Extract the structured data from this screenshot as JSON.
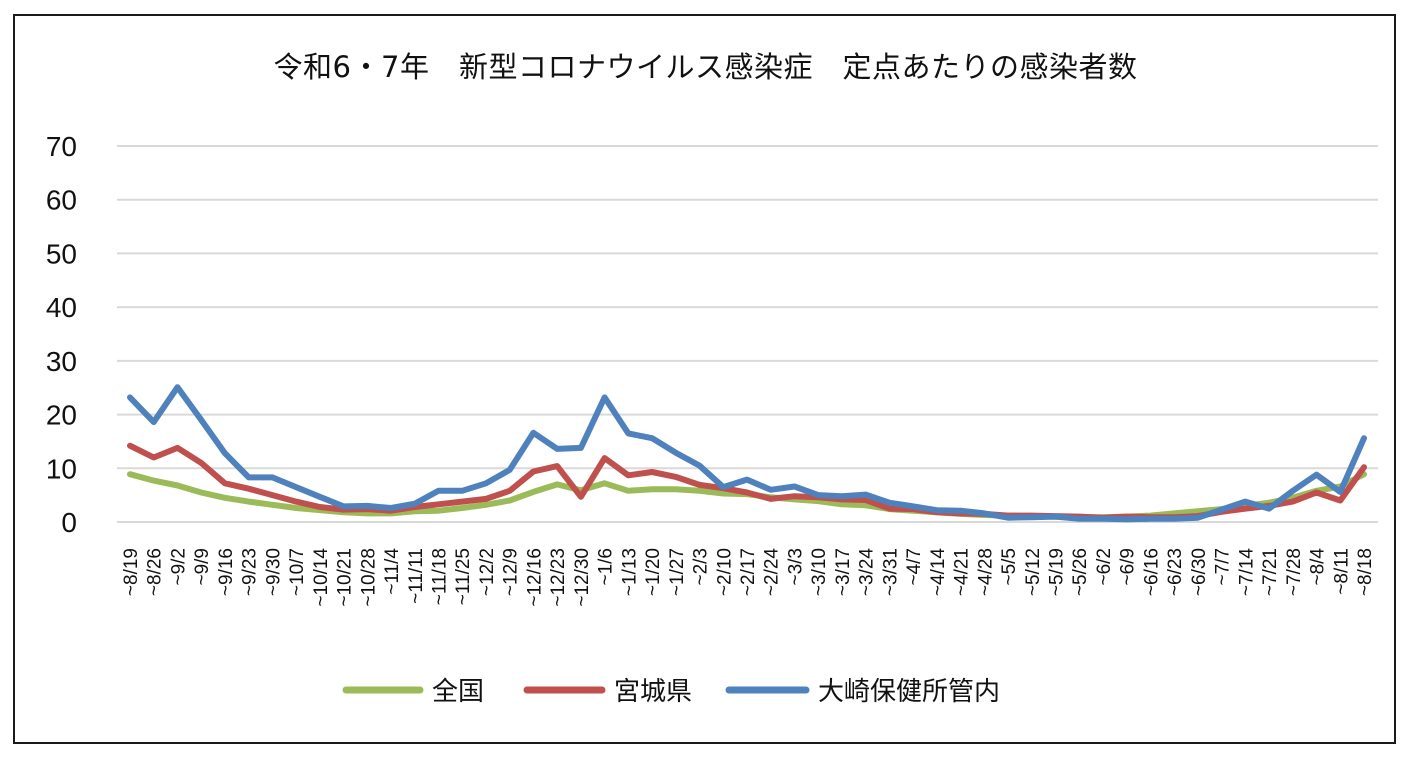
{
  "chart_data": {
    "type": "line",
    "title": "令和6・7年　新型コロナウイルス感染症　定点あたりの感染者数",
    "xlabel": "",
    "ylabel": "",
    "ylim": [
      0,
      70
    ],
    "yticks": [
      0,
      10,
      20,
      30,
      40,
      50,
      60,
      70
    ],
    "grid": true,
    "legend_position": "bottom",
    "categories": [
      "8/19",
      "8/26",
      "9/2",
      "9/9",
      "9/16",
      "9/23",
      "9/30",
      "10/7",
      "10/14",
      "10/21",
      "10/28",
      "11/4",
      "11/11",
      "11/18",
      "11/25",
      "12/2",
      "12/9",
      "12/16",
      "12/23",
      "12/30",
      "1/6",
      "1/13",
      "1/20",
      "1/27",
      "2/3",
      "2/10",
      "2/17",
      "2/24",
      "3/3",
      "3/10",
      "3/17",
      "3/24",
      "3/31",
      "4/7",
      "4/14",
      "4/21",
      "4/28",
      "5/5",
      "5/12",
      "5/19",
      "5/26",
      "6/2",
      "6/9",
      "6/16",
      "6/23",
      "6/30",
      "7/7",
      "7/14",
      "7/21",
      "7/28",
      "8/4",
      "8/11",
      "8/18"
    ],
    "series": [
      {
        "name": "全国",
        "color": "#9bbb59",
        "values": [
          8.9,
          7.7,
          6.8,
          5.5,
          4.5,
          3.8,
          3.2,
          2.6,
          2.2,
          1.8,
          1.6,
          1.6,
          2.0,
          2.1,
          2.6,
          3.2,
          4.0,
          5.6,
          7.0,
          5.9,
          7.2,
          5.8,
          6.1,
          6.1,
          5.8,
          5.3,
          5.2,
          4.6,
          4.2,
          3.9,
          3.3,
          3.1,
          2.4,
          2.1,
          1.8,
          1.5,
          1.3,
          1.2,
          1.1,
          1.0,
          0.9,
          0.9,
          1.0,
          1.2,
          1.6,
          2.0,
          2.4,
          3.0,
          3.6,
          4.5,
          5.8,
          6.6,
          8.9
        ]
      },
      {
        "name": "宮城県",
        "color": "#c0504d",
        "values": [
          14.2,
          12.0,
          13.8,
          11.0,
          7.2,
          6.2,
          5.0,
          3.8,
          2.8,
          2.3,
          2.4,
          2.1,
          2.8,
          3.3,
          3.8,
          4.3,
          5.8,
          9.4,
          10.4,
          4.7,
          11.9,
          8.7,
          9.3,
          8.4,
          6.9,
          6.3,
          5.5,
          4.3,
          4.8,
          4.6,
          4.2,
          4.1,
          2.5,
          2.4,
          1.8,
          1.6,
          1.5,
          1.2,
          1.2,
          1.1,
          1.0,
          0.8,
          1.0,
          0.9,
          0.9,
          1.1,
          1.9,
          2.5,
          3.0,
          3.8,
          5.5,
          4.0,
          10.2
        ]
      },
      {
        "name": "大崎保健所管内",
        "color": "#4f81bd",
        "values": [
          23.2,
          18.6,
          25.1,
          19.0,
          12.8,
          8.3,
          8.3,
          6.5,
          4.7,
          2.9,
          3.0,
          2.6,
          3.4,
          5.8,
          5.8,
          7.2,
          9.7,
          16.6,
          13.6,
          13.8,
          23.2,
          16.5,
          15.6,
          12.9,
          10.5,
          6.5,
          7.9,
          6.0,
          6.6,
          5.0,
          4.8,
          5.1,
          3.6,
          2.9,
          2.2,
          2.1,
          1.6,
          0.8,
          0.9,
          1.0,
          0.6,
          0.6,
          0.5,
          0.6,
          0.6,
          0.8,
          2.3,
          3.8,
          2.5,
          5.8,
          8.8,
          5.6,
          15.6
        ]
      }
    ]
  }
}
